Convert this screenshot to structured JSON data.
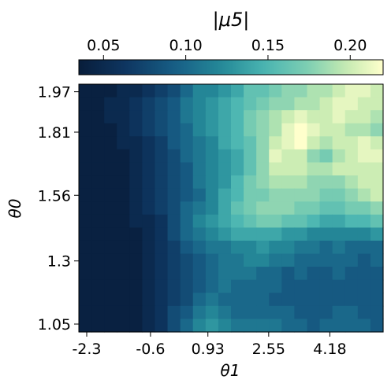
{
  "chart_data": {
    "type": "heatmap",
    "title": "|μ5|",
    "xlabel": "θ1",
    "ylabel": "θ0",
    "colormap": "YlGnBu_r",
    "colorbar": {
      "position": "top",
      "range": [
        0.035,
        0.22
      ],
      "ticks": [
        0.05,
        0.1,
        0.15,
        0.2
      ],
      "tick_labels": [
        "0.05",
        "0.10",
        "0.15",
        "0.20"
      ]
    },
    "x_range": [
      -2.3,
      5.6
    ],
    "y_range": [
      1.05,
      2.0
    ],
    "x_ticks": [
      -2.3,
      -0.6,
      0.93,
      2.55,
      4.18
    ],
    "x_tick_labels": [
      "-2.3",
      "-0.6",
      "0.93",
      "2.55",
      "4.18"
    ],
    "y_ticks": [
      1.05,
      1.3,
      1.56,
      1.81,
      1.97
    ],
    "y_tick_labels": [
      "1.05",
      "1.3",
      "1.56",
      "1.81",
      "1.97"
    ],
    "n_cols": 24,
    "n_rows": 19,
    "values_top_to_bottom": [
      [
        0.04,
        0.04,
        0.04,
        0.05,
        0.05,
        0.06,
        0.07,
        0.08,
        0.1,
        0.12,
        0.12,
        0.13,
        0.14,
        0.16,
        0.16,
        0.17,
        0.18,
        0.18,
        0.19,
        0.19,
        0.2,
        0.21,
        0.21,
        0.2
      ],
      [
        0.04,
        0.04,
        0.05,
        0.05,
        0.06,
        0.07,
        0.08,
        0.09,
        0.11,
        0.12,
        0.13,
        0.14,
        0.15,
        0.16,
        0.17,
        0.18,
        0.18,
        0.19,
        0.19,
        0.2,
        0.21,
        0.21,
        0.2,
        0.2
      ],
      [
        0.04,
        0.04,
        0.05,
        0.05,
        0.06,
        0.07,
        0.08,
        0.09,
        0.11,
        0.12,
        0.13,
        0.14,
        0.15,
        0.17,
        0.18,
        0.19,
        0.2,
        0.21,
        0.2,
        0.2,
        0.21,
        0.2,
        0.2,
        0.19
      ],
      [
        0.04,
        0.04,
        0.04,
        0.05,
        0.06,
        0.07,
        0.08,
        0.09,
        0.1,
        0.12,
        0.13,
        0.14,
        0.15,
        0.17,
        0.18,
        0.19,
        0.21,
        0.22,
        0.21,
        0.2,
        0.2,
        0.19,
        0.19,
        0.18
      ],
      [
        0.04,
        0.04,
        0.04,
        0.05,
        0.05,
        0.06,
        0.07,
        0.09,
        0.1,
        0.11,
        0.12,
        0.14,
        0.15,
        0.16,
        0.18,
        0.2,
        0.21,
        0.22,
        0.2,
        0.19,
        0.2,
        0.2,
        0.21,
        0.2
      ],
      [
        0.04,
        0.04,
        0.04,
        0.04,
        0.05,
        0.06,
        0.07,
        0.08,
        0.1,
        0.11,
        0.12,
        0.13,
        0.14,
        0.16,
        0.18,
        0.21,
        0.2,
        0.2,
        0.18,
        0.17,
        0.19,
        0.2,
        0.21,
        0.21
      ],
      [
        0.04,
        0.04,
        0.04,
        0.04,
        0.05,
        0.06,
        0.07,
        0.08,
        0.09,
        0.11,
        0.12,
        0.13,
        0.14,
        0.16,
        0.18,
        0.2,
        0.2,
        0.2,
        0.19,
        0.19,
        0.2,
        0.2,
        0.2,
        0.2
      ],
      [
        0.04,
        0.04,
        0.04,
        0.04,
        0.05,
        0.06,
        0.07,
        0.08,
        0.09,
        0.11,
        0.12,
        0.13,
        0.15,
        0.17,
        0.18,
        0.19,
        0.19,
        0.19,
        0.18,
        0.18,
        0.18,
        0.19,
        0.2,
        0.2
      ],
      [
        0.04,
        0.04,
        0.04,
        0.04,
        0.05,
        0.06,
        0.07,
        0.08,
        0.09,
        0.1,
        0.12,
        0.14,
        0.15,
        0.17,
        0.17,
        0.18,
        0.18,
        0.18,
        0.18,
        0.17,
        0.17,
        0.18,
        0.19,
        0.2
      ],
      [
        0.04,
        0.04,
        0.04,
        0.04,
        0.05,
        0.06,
        0.07,
        0.08,
        0.1,
        0.11,
        0.12,
        0.14,
        0.16,
        0.17,
        0.18,
        0.18,
        0.18,
        0.17,
        0.17,
        0.16,
        0.16,
        0.17,
        0.17,
        0.18
      ],
      [
        0.04,
        0.04,
        0.04,
        0.04,
        0.05,
        0.05,
        0.06,
        0.08,
        0.1,
        0.12,
        0.13,
        0.14,
        0.15,
        0.16,
        0.17,
        0.17,
        0.16,
        0.16,
        0.15,
        0.14,
        0.14,
        0.15,
        0.15,
        0.16
      ],
      [
        0.04,
        0.04,
        0.04,
        0.04,
        0.04,
        0.05,
        0.06,
        0.08,
        0.1,
        0.11,
        0.12,
        0.13,
        0.14,
        0.14,
        0.14,
        0.14,
        0.13,
        0.13,
        0.12,
        0.12,
        0.12,
        0.12,
        0.12,
        0.13
      ],
      [
        0.04,
        0.04,
        0.04,
        0.04,
        0.04,
        0.05,
        0.06,
        0.07,
        0.09,
        0.1,
        0.11,
        0.11,
        0.12,
        0.12,
        0.13,
        0.12,
        0.12,
        0.11,
        0.11,
        0.1,
        0.11,
        0.1,
        0.1,
        0.1
      ],
      [
        0.04,
        0.04,
        0.04,
        0.04,
        0.04,
        0.05,
        0.06,
        0.07,
        0.08,
        0.09,
        0.1,
        0.11,
        0.11,
        0.12,
        0.12,
        0.11,
        0.11,
        0.1,
        0.1,
        0.1,
        0.1,
        0.1,
        0.09,
        0.1
      ],
      [
        0.04,
        0.04,
        0.04,
        0.04,
        0.04,
        0.05,
        0.06,
        0.07,
        0.08,
        0.09,
        0.1,
        0.11,
        0.11,
        0.11,
        0.1,
        0.1,
        0.09,
        0.1,
        0.09,
        0.09,
        0.1,
        0.09,
        0.09,
        0.09
      ],
      [
        0.04,
        0.04,
        0.04,
        0.04,
        0.04,
        0.05,
        0.06,
        0.07,
        0.08,
        0.09,
        0.1,
        0.11,
        0.1,
        0.1,
        0.1,
        0.1,
        0.09,
        0.09,
        0.09,
        0.09,
        0.09,
        0.09,
        0.09,
        0.09
      ],
      [
        0.04,
        0.04,
        0.04,
        0.04,
        0.04,
        0.05,
        0.06,
        0.07,
        0.08,
        0.1,
        0.11,
        0.1,
        0.1,
        0.1,
        0.1,
        0.09,
        0.09,
        0.09,
        0.09,
        0.09,
        0.09,
        0.09,
        0.09,
        0.09
      ],
      [
        0.04,
        0.04,
        0.04,
        0.04,
        0.04,
        0.05,
        0.06,
        0.08,
        0.09,
        0.11,
        0.12,
        0.11,
        0.1,
        0.1,
        0.1,
        0.1,
        0.1,
        0.09,
        0.09,
        0.09,
        0.1,
        0.1,
        0.09,
        0.09
      ],
      [
        0.04,
        0.04,
        0.04,
        0.04,
        0.04,
        0.05,
        0.06,
        0.08,
        0.1,
        0.12,
        0.13,
        0.12,
        0.11,
        0.11,
        0.11,
        0.11,
        0.1,
        0.1,
        0.09,
        0.1,
        0.1,
        0.1,
        0.1,
        0.09
      ]
    ]
  }
}
